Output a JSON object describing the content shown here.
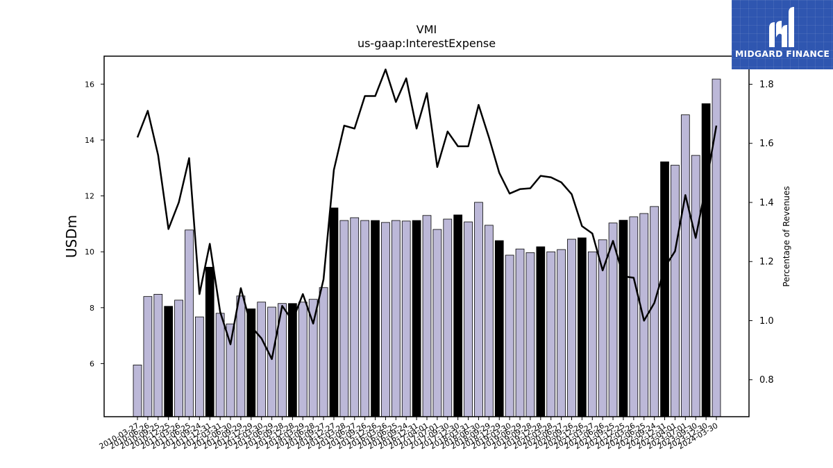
{
  "logo": {
    "text": "MIDGARD FINANCE",
    "background": "#2f56b0"
  },
  "chart_data": {
    "type": "bar+line",
    "title": "VMI",
    "subtitle": "us-gaap:InterestExpense",
    "ylabel_left": "USDm",
    "ylabel_right": "Percentage of Revenues",
    "ylim_left": [
      4.1,
      17.0
    ],
    "ylim_right": [
      0.675,
      1.895
    ],
    "yticks_left": [
      6,
      8,
      10,
      12,
      14,
      16
    ],
    "yticks_right": [
      0.8,
      1.0,
      1.2,
      1.4,
      1.6,
      1.8
    ],
    "bar_color": "#bcb8d8",
    "bar_highlight_color": "#000000",
    "line_color": "#000000",
    "categories": [
      "2010-03-27",
      "2010-06-26",
      "2010-09-25",
      "2010-12-25",
      "2011-03-26",
      "2011-06-25",
      "2011-09-24",
      "2011-12-31",
      "2012-03-31",
      "2012-06-30",
      "2012-09-29",
      "2012-12-29",
      "2013-03-30",
      "2013-06-29",
      "2013-09-28",
      "2013-12-28",
      "2014-03-29",
      "2014-06-28",
      "2014-09-27",
      "2014-12-27",
      "2015-03-28",
      "2015-06-27",
      "2015-09-26",
      "2015-12-26",
      "2016-03-26",
      "2016-06-25",
      "2016-09-24",
      "2016-12-31",
      "2017-04-01",
      "2017-07-01",
      "2017-09-30",
      "2017-12-30",
      "2018-03-31",
      "2018-06-30",
      "2018-09-29",
      "2018-12-29",
      "2019-03-30",
      "2019-06-29",
      "2019-09-28",
      "2019-12-28",
      "2020-03-28",
      "2020-06-27",
      "2020-09-26",
      "2020-12-26",
      "2021-03-27",
      "2021-06-26",
      "2021-09-25",
      "2021-12-25",
      "2022-03-26",
      "2022-06-25",
      "2022-09-24",
      "2022-12-31",
      "2023-04-01",
      "2023-07-01",
      "2023-09-30",
      "2023-12-30",
      "2024-03-30"
    ],
    "bar_values": [
      5.95,
      8.4,
      8.48,
      8.05,
      8.27,
      10.78,
      7.67,
      9.45,
      7.8,
      7.42,
      8.42,
      7.96,
      8.2,
      8.02,
      8.15,
      8.15,
      8.2,
      8.3,
      8.72,
      11.57,
      11.12,
      11.22,
      11.12,
      11.12,
      11.05,
      11.12,
      11.1,
      11.12,
      11.3,
      10.8,
      11.17,
      11.32,
      11.07,
      11.77,
      10.95,
      10.4,
      9.88,
      10.1,
      9.97,
      10.18,
      10.0,
      10.08,
      10.45,
      10.5,
      10.0,
      10.43,
      11.03,
      11.13,
      11.25,
      11.37,
      11.62,
      13.22,
      13.1,
      14.9,
      13.45,
      15.3,
      16.18
    ],
    "highlight": [
      false,
      false,
      false,
      true,
      false,
      false,
      false,
      true,
      false,
      false,
      false,
      true,
      false,
      false,
      false,
      true,
      false,
      false,
      false,
      true,
      false,
      false,
      false,
      true,
      false,
      false,
      false,
      true,
      false,
      false,
      false,
      true,
      false,
      false,
      false,
      true,
      false,
      false,
      false,
      true,
      false,
      false,
      false,
      true,
      false,
      false,
      false,
      true,
      false,
      false,
      false,
      true,
      false,
      false,
      false,
      true,
      false
    ],
    "line_values": [
      1.62,
      1.71,
      1.56,
      1.31,
      1.4,
      1.55,
      1.09,
      1.26,
      1.03,
      0.92,
      1.11,
      0.98,
      0.94,
      0.87,
      1.05,
      1.0,
      1.09,
      0.99,
      1.14,
      1.51,
      1.66,
      1.65,
      1.76,
      1.76,
      1.85,
      1.74,
      1.82,
      1.65,
      1.77,
      1.52,
      1.64,
      1.59,
      1.59,
      1.73,
      1.62,
      1.5,
      1.43,
      1.445,
      1.448,
      1.49,
      1.485,
      1.468,
      1.428,
      1.32,
      1.295,
      1.17,
      1.27,
      1.15,
      1.145,
      1.0,
      1.06,
      1.18,
      1.235,
      1.425,
      1.28,
      1.46,
      1.66
    ]
  }
}
